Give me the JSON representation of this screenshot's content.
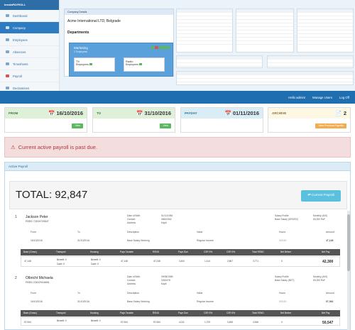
{
  "app": {
    "brand": "ImedaPAYROLL"
  },
  "sidebar": {
    "items": [
      {
        "label": "Dashboard"
      },
      {
        "label": "Company"
      },
      {
        "label": "Employees"
      },
      {
        "label": "Absences"
      },
      {
        "label": "Timesheets"
      },
      {
        "label": "Payroll"
      },
      {
        "label": "Declarations"
      }
    ]
  },
  "company": {
    "panel_title": "Company Details",
    "name": "Acme International LTD, Belgrade",
    "departments_title": "Departments",
    "dept": {
      "name": "Marketing",
      "employees_label": "2 Employees"
    },
    "subdepts": [
      {
        "name": "TV",
        "label": "Employees"
      },
      {
        "name": "Radio",
        "label": "Employees"
      }
    ]
  },
  "nav": {
    "items": [
      "Hello admin!",
      "Manage Users",
      "Log Off"
    ]
  },
  "periods": [
    {
      "label": "FROM",
      "value": "16/10/2016",
      "button": "View"
    },
    {
      "label": "TO",
      "value": "31/10/2016",
      "button": "View"
    },
    {
      "label": "PAYDAY",
      "value": "01/11/2016",
      "button": ""
    },
    {
      "label": "ARCHIVE",
      "value": "2",
      "button": "View Previous Payrolls"
    }
  ],
  "alert": {
    "text": "Current active payroll is past due."
  },
  "active_payroll": {
    "title": "Active Payroll",
    "total_label": "TOTAL: 92,847",
    "current_button": "Current Payroll"
  },
  "employees": [
    {
      "num": "1",
      "name": "Jackson Peter",
      "nid": "REBS 7263970984T",
      "dob_label": "Date of Birth",
      "dob": "01/11/1984",
      "contact_label": "Contact",
      "contact": "06622362",
      "address_label": "Address",
      "address": "Kapit",
      "profile_label": "Salary Profile",
      "profile": "Monthly (400)",
      "base_label": "Base Salary (GROSS)",
      "base": "60,000 RsF",
      "line_headers": [
        "From",
        "To",
        "Description",
        "Value",
        "Hours",
        "Amount"
      ],
      "line": [
        "16/10/2016",
        "31/10/2016",
        "Base Salary Working",
        "Regular Income",
        "00/160",
        "47,148"
      ],
      "dark_headers": [
        "Base (Gross)",
        "Transport",
        "Housing",
        "Pays Taxable",
        "RSND",
        "Pays Due",
        "CSR 5%",
        "CSR 6%",
        "Total RSND",
        "Net Before",
        "Net Pay"
      ],
      "dark_values": [
        "47,148",
        "Benefit: 0",
        "Benefit: 0",
        "47,148",
        "47,248",
        "3,400",
        "1,414",
        "2,867",
        "3,771",
        "0",
        "42,300"
      ],
      "cash_values": [
        "Cash: 0",
        "Cash: 0"
      ]
    },
    {
      "num": "2",
      "name": "Olbricht Michaela",
      "nid": "REBS 2363290486N",
      "dob_label": "Date of Birth",
      "dob": "09/08/1989",
      "contact_label": "Contact",
      "contact": "0263478",
      "address_label": "Address",
      "address": "Kapit",
      "profile_label": "Salary Profile",
      "profile": "Monthly (400)",
      "base_label": "Base Salary (NET)",
      "base": "50,000 RsF",
      "line_headers": [
        "From",
        "To",
        "Description",
        "Value",
        "Hours",
        "Amount"
      ],
      "line": [
        "16/10/2016",
        "31/10/2016",
        "Base Salary Working",
        "Regular Income",
        "00/160",
        "57,064"
      ],
      "dark_headers": [
        "Base (Gross)",
        "Transport",
        "Housing",
        "Pays Taxable",
        "RSND",
        "Pays Due",
        "CSR 5%",
        "CSR 6%",
        "Total RSND",
        "Net Before",
        "Net Pay"
      ],
      "dark_values": [
        "57,064",
        "Benefit: 0",
        "Benefit: 0",
        "57,064",
        "57,064",
        "4,011",
        "1,729",
        "3,455",
        "4,546",
        "0",
        "50,547"
      ]
    }
  ],
  "colors": {
    "brand": "#2d6ea6",
    "nav": "#1f6fb0",
    "success": "#5cb85c",
    "info": "#5bc0de",
    "warning": "#f0ad4e",
    "danger": "#b0363c"
  }
}
